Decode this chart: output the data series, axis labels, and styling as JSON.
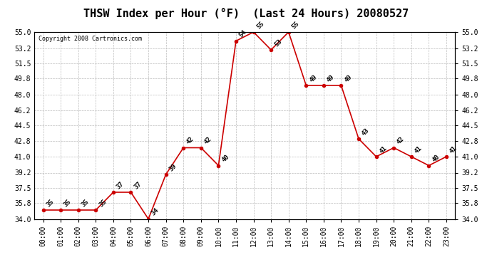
{
  "title": "THSW Index per Hour (°F)  (Last 24 Hours) 20080527",
  "copyright": "Copyright 2008 Cartronics.com",
  "hours": [
    "00:00",
    "01:00",
    "02:00",
    "03:00",
    "04:00",
    "05:00",
    "06:00",
    "07:00",
    "08:00",
    "09:00",
    "10:00",
    "11:00",
    "12:00",
    "13:00",
    "14:00",
    "15:00",
    "16:00",
    "17:00",
    "18:00",
    "19:00",
    "20:00",
    "21:00",
    "22:00",
    "23:00"
  ],
  "values": [
    35,
    35,
    35,
    35,
    37,
    37,
    34,
    39,
    42,
    42,
    40,
    54,
    55,
    53,
    55,
    49,
    49,
    49,
    43,
    41,
    42,
    41,
    40,
    41
  ],
  "ylim": [
    34.0,
    55.0
  ],
  "yticks": [
    34.0,
    35.8,
    37.5,
    39.2,
    41.0,
    42.8,
    44.5,
    46.2,
    48.0,
    49.8,
    51.5,
    53.2,
    55.0
  ],
  "line_color": "#cc0000",
  "marker_color": "#cc0000",
  "bg_color": "#ffffff",
  "grid_color": "#bbbbbb",
  "title_fontsize": 11,
  "label_fontsize": 7,
  "annotation_fontsize": 6.5,
  "copyright_fontsize": 6
}
